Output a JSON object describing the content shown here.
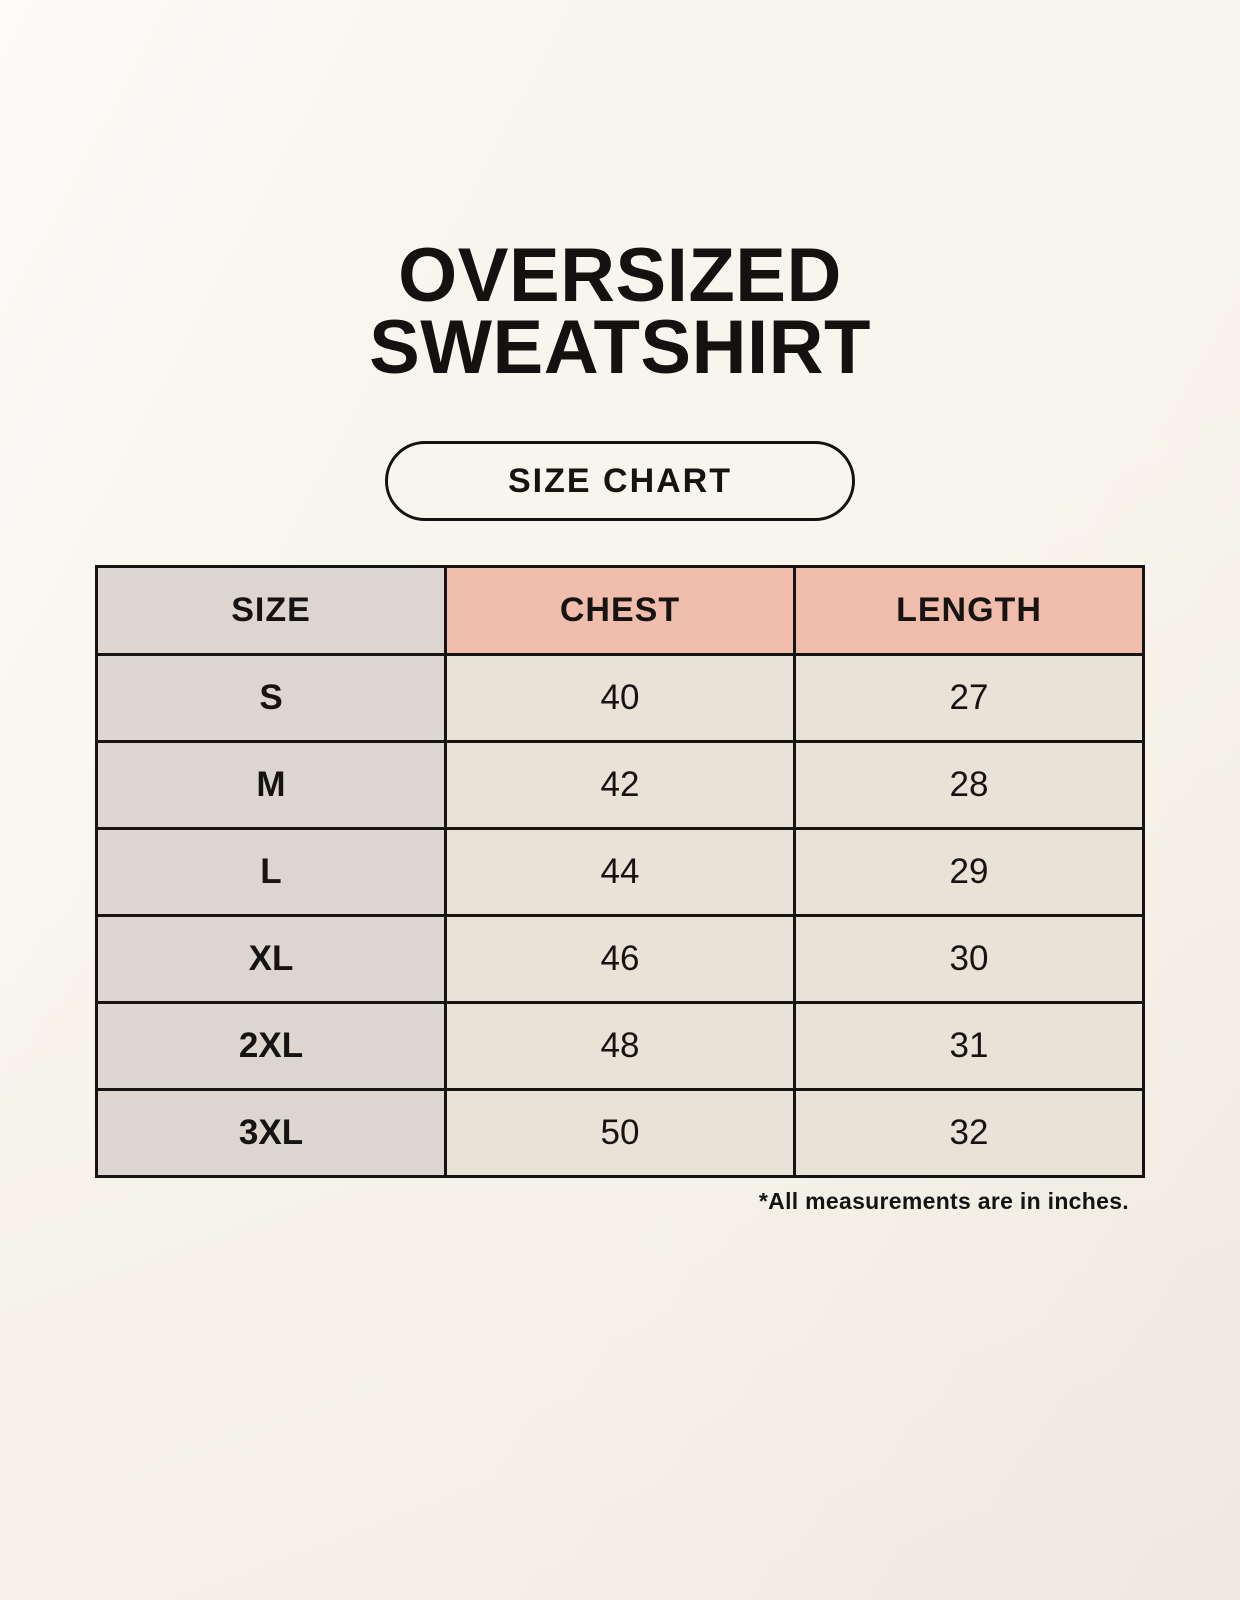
{
  "page": {
    "title": "OVERSIZED SWEATSHIRT",
    "badge_label": "SIZE CHART",
    "footnote": "*All measurements are in inches."
  },
  "colors": {
    "background": "#F7F3EA",
    "header_accent_bg": "#F0BCAB",
    "size_column_bg": "#DCD5D0",
    "cell_bg": "#E9E2D6",
    "border_and_text": "#161413"
  },
  "chart_data": {
    "type": "table",
    "title": "OVERSIZED SWEATSHIRT — SIZE CHART",
    "columns": [
      "SIZE",
      "CHEST",
      "LENGTH"
    ],
    "rows": [
      [
        "S",
        "40",
        "27"
      ],
      [
        "M",
        "42",
        "28"
      ],
      [
        "L",
        "44",
        "29"
      ],
      [
        "XL",
        "46",
        "30"
      ],
      [
        "2XL",
        "48",
        "31"
      ],
      [
        "3XL",
        "50",
        "32"
      ]
    ],
    "units": "inches"
  }
}
